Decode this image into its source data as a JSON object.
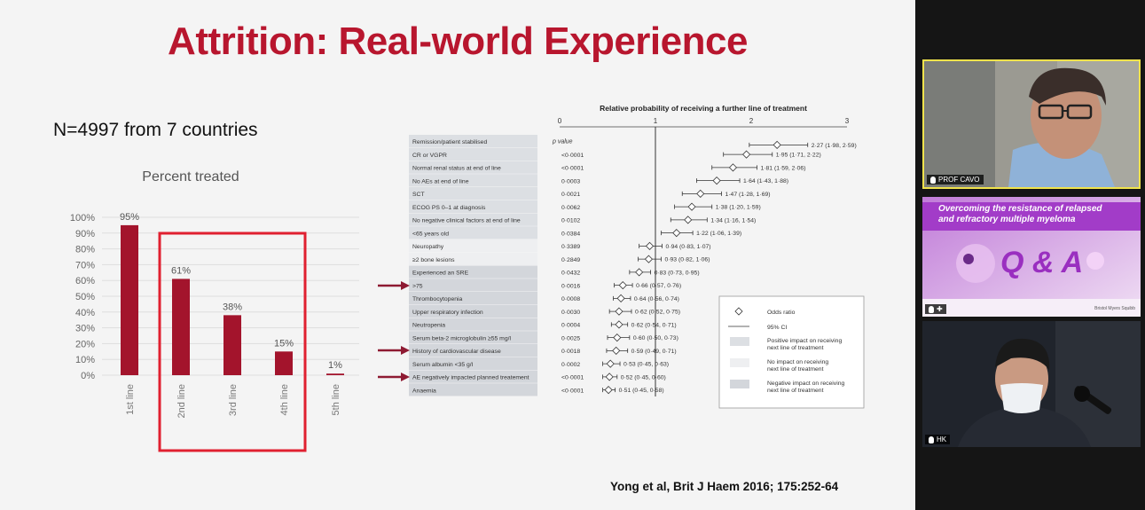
{
  "slide": {
    "title": "Attrition: Real-world Experience",
    "subtitle": "N=4997 from 7 countries",
    "citation": "Yong et al, Brit J Haem 2016; 175:252-64",
    "accent_color": "#b8162e"
  },
  "chart_data": [
    {
      "type": "bar",
      "title": "Percent treated",
      "categories": [
        "1st line",
        "2nd line",
        "3rd line",
        "4th line",
        "5th line"
      ],
      "values": [
        95,
        61,
        38,
        15,
        1
      ],
      "value_labels": [
        "95%",
        "61%",
        "38%",
        "15%",
        "1%"
      ],
      "ylim": [
        0,
        100
      ],
      "yticks": [
        "0%",
        "10%",
        "20%",
        "30%",
        "40%",
        "50%",
        "60%",
        "70%",
        "80%",
        "90%",
        "100%"
      ],
      "bar_color": "#a3142c",
      "grid": true,
      "highlight_box": "2nd line – 4th line",
      "highlight_color": "#e02030"
    },
    {
      "type": "scatter",
      "title": "Relative probability of receiving a further line of treatment",
      "xlim": [
        0,
        3
      ],
      "xticks": [
        "0",
        "1",
        "2",
        "3"
      ],
      "pvalue_header": "p value",
      "rows": [
        {
          "label": "Remission/patient stabilised",
          "p": "<0·0001",
          "or": 2.27,
          "lo": 1.98,
          "hi": 2.59,
          "ci": "2·27 (1·98, 2·59)",
          "impact": "positive"
        },
        {
          "label": "CR or VGPR",
          "p": "<0·0001",
          "or": 1.95,
          "lo": 1.71,
          "hi": 2.22,
          "ci": "1·95 (1·71, 2·22)",
          "impact": "positive"
        },
        {
          "label": "Normal renal status at end of line",
          "p": "<0·0001",
          "or": 1.81,
          "lo": 1.59,
          "hi": 2.06,
          "ci": "1·81 (1·59, 2·06)",
          "impact": "positive"
        },
        {
          "label": "No AEs at end of line",
          "p": "0·0003",
          "or": 1.64,
          "lo": 1.43,
          "hi": 1.88,
          "ci": "1·64 (1·43, 1·88)",
          "impact": "positive"
        },
        {
          "label": "SCT",
          "p": "0·0021",
          "or": 1.47,
          "lo": 1.28,
          "hi": 1.69,
          "ci": "1·47 (1·28, 1·69)",
          "impact": "positive"
        },
        {
          "label": "ECOG PS 0–1 at diagnosis",
          "p": "0·0062",
          "or": 1.38,
          "lo": 1.2,
          "hi": 1.59,
          "ci": "1·38 (1·20, 1·59)",
          "impact": "positive"
        },
        {
          "label": "No negative clinical factors at end of line",
          "p": "0·0102",
          "or": 1.34,
          "lo": 1.16,
          "hi": 1.54,
          "ci": "1·34 (1·16, 1·54)",
          "impact": "positive"
        },
        {
          "label": "<65 years old",
          "p": "0·0384",
          "or": 1.22,
          "lo": 1.06,
          "hi": 1.39,
          "ci": "1·22 (1·06, 1·39)",
          "impact": "positive"
        },
        {
          "label": "Neuropathy",
          "p": "0·3389",
          "or": 0.94,
          "lo": 0.83,
          "hi": 1.07,
          "ci": "0·94 (0·83, 1·07)",
          "impact": "none"
        },
        {
          "label": "≥2 bone lesions",
          "p": "0·2849",
          "or": 0.93,
          "lo": 0.82,
          "hi": 1.06,
          "ci": "0·93 (0·82, 1·06)",
          "impact": "none"
        },
        {
          "label": "Experienced an SRE",
          "p": "0·0432",
          "or": 0.83,
          "lo": 0.73,
          "hi": 0.95,
          "ci": "0·83 (0·73, 0·95)",
          "impact": "negative"
        },
        {
          "label": ">75",
          "p": "0·0016",
          "or": 0.66,
          "lo": 0.57,
          "hi": 0.76,
          "ci": "0·66 (0·57, 0·76)",
          "impact": "negative",
          "arrow": true
        },
        {
          "label": "Thrombocytopenia",
          "p": "0·0008",
          "or": 0.64,
          "lo": 0.56,
          "hi": 0.74,
          "ci": "0·64 (0·56, 0·74)",
          "impact": "negative"
        },
        {
          "label": "Upper respiratory infection",
          "p": "0·0030",
          "or": 0.62,
          "lo": 0.52,
          "hi": 0.75,
          "ci": "0·62 (0·52, 0·75)",
          "impact": "negative"
        },
        {
          "label": "Neutropenia",
          "p": "0·0004",
          "or": 0.62,
          "lo": 0.54,
          "hi": 0.71,
          "ci": "0·62 (0·54, 0·71)",
          "impact": "negative"
        },
        {
          "label": "Serum beta-2 microglobulin ≥55 mg/l",
          "p": "0·0025",
          "or": 0.6,
          "lo": 0.5,
          "hi": 0.73,
          "ci": "0·60 (0·50, 0·73)",
          "impact": "negative"
        },
        {
          "label": "History of cardiovascular disease",
          "p": "0·0018",
          "or": 0.59,
          "lo": 0.49,
          "hi": 0.71,
          "ci": "0·59 (0·49, 0·71)",
          "impact": "negative",
          "arrow": true
        },
        {
          "label": "Serum albumin <35 g/l",
          "p": "0·0002",
          "or": 0.53,
          "lo": 0.45,
          "hi": 0.63,
          "ci": "0·53 (0·45, 0·63)",
          "impact": "negative"
        },
        {
          "label": "AE negatively impacted planned treatement",
          "p": "<0·0001",
          "or": 0.52,
          "lo": 0.45,
          "hi": 0.6,
          "ci": "0·52 (0·45, 0·60)",
          "impact": "negative",
          "arrow": true
        },
        {
          "label": "Anaemia",
          "p": "<0·0001",
          "or": 0.51,
          "lo": 0.45,
          "hi": 0.58,
          "ci": "0·51 (0·45, 0·58)",
          "impact": "negative"
        }
      ],
      "legend": {
        "odds_ratio": "Odds ratio",
        "ci": "95% CI",
        "positive": "Positive impact on receiving next line of treatment",
        "none": "No impact on receiving next line of treatment",
        "negative": "Negative impact on receiving next line of treatment"
      },
      "impact_colors": {
        "positive": "#dcdfe3",
        "none": "#eeeff1",
        "negative": "#d3d6db"
      },
      "arrow_color": "#8e1a32"
    }
  ],
  "participants": [
    {
      "name": "PROF CAVO",
      "active_speaker": true
    },
    {
      "name": "",
      "shared_screen_title_line1": "Overcoming the resistance of relapsed",
      "shared_screen_title_line2": "and refractory multiple myeloma",
      "big_text": "Q & A",
      "logo_text": "Bristol Myers Squibb"
    },
    {
      "name": "HK"
    }
  ],
  "colors": {
    "active_border": "#f0e34c",
    "purple_panel": "#b14ad1"
  }
}
